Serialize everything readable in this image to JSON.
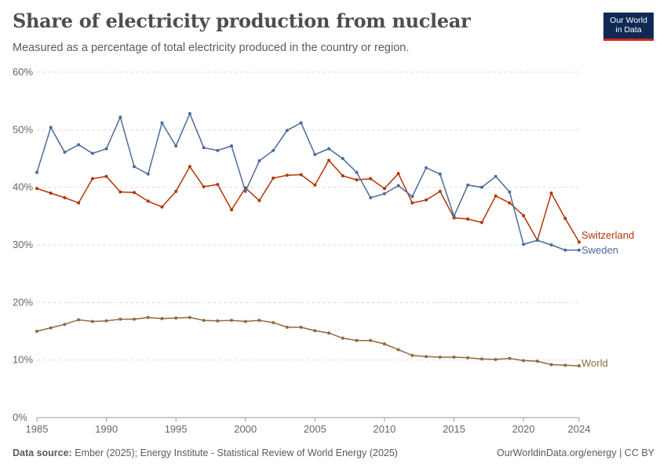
{
  "header": {
    "title": "Share of electricity production from nuclear",
    "subtitle": "Measured as a percentage of total electricity produced in the country or region."
  },
  "logo": {
    "line1": "Our World",
    "line2": "in Data"
  },
  "footer": {
    "source_label": "Data source:",
    "source_text": "Ember (2025); Energy Institute - Statistical Review of World Energy (2025)",
    "link_text": "OurWorldinData.org/energy",
    "license_text": " | CC BY"
  },
  "chart_data": {
    "type": "line",
    "x_ticks": [
      1985,
      1990,
      1995,
      2000,
      2005,
      2010,
      2015,
      2020,
      2024
    ],
    "y_ticks": [
      "0%",
      "10%",
      "20%",
      "30%",
      "40%",
      "50%",
      "60%"
    ],
    "y_tick_values": [
      0,
      10,
      20,
      30,
      40,
      50,
      60
    ],
    "xlim": [
      1985,
      2024
    ],
    "ylim": [
      0,
      60
    ],
    "grid": "horizontal dashed",
    "legend": "inline labels at line ends",
    "x": [
      1985,
      1986,
      1987,
      1988,
      1989,
      1990,
      1991,
      1992,
      1993,
      1994,
      1995,
      1996,
      1997,
      1998,
      1999,
      2000,
      2001,
      2002,
      2003,
      2004,
      2005,
      2006,
      2007,
      2008,
      2009,
      2010,
      2011,
      2012,
      2013,
      2014,
      2015,
      2016,
      2017,
      2018,
      2019,
      2020,
      2021,
      2022,
      2023,
      2024
    ],
    "series": [
      {
        "name": "Switzerland",
        "color": "#b13507",
        "values": [
          39.8,
          39.0,
          38.2,
          37.3,
          41.5,
          41.9,
          39.2,
          39.1,
          37.6,
          36.6,
          39.3,
          43.6,
          40.1,
          40.5,
          36.1,
          39.9,
          37.7,
          41.6,
          42.1,
          42.2,
          40.4,
          44.7,
          42.0,
          41.3,
          41.5,
          39.8,
          42.4,
          37.3,
          37.8,
          39.3,
          34.7,
          34.5,
          33.9,
          38.5,
          37.3,
          35.1,
          30.8,
          39.0,
          34.6,
          30.5
        ]
      },
      {
        "name": "Sweden",
        "color": "#4c6a9c",
        "values": [
          42.6,
          50.4,
          46.1,
          47.4,
          45.9,
          46.7,
          52.2,
          43.6,
          42.3,
          51.2,
          47.2,
          52.8,
          46.9,
          46.4,
          47.2,
          39.3,
          44.6,
          46.4,
          49.9,
          51.2,
          45.7,
          46.7,
          45.0,
          42.6,
          38.2,
          38.9,
          40.3,
          38.4,
          43.4,
          42.3,
          35.0,
          40.4,
          40.0,
          41.9,
          39.2,
          30.1,
          30.8,
          30.0,
          29.1,
          29.1
        ]
      },
      {
        "name": "World",
        "color": "#8f6a3c",
        "values": [
          15.0,
          15.6,
          16.2,
          17.0,
          16.7,
          16.8,
          17.1,
          17.1,
          17.4,
          17.2,
          17.3,
          17.4,
          16.9,
          16.8,
          16.9,
          16.7,
          16.9,
          16.5,
          15.7,
          15.7,
          15.1,
          14.7,
          13.8,
          13.4,
          13.4,
          12.8,
          11.8,
          10.8,
          10.6,
          10.5,
          10.5,
          10.4,
          10.2,
          10.1,
          10.3,
          9.9,
          9.8,
          9.2,
          9.1,
          9.0
        ]
      }
    ]
  }
}
